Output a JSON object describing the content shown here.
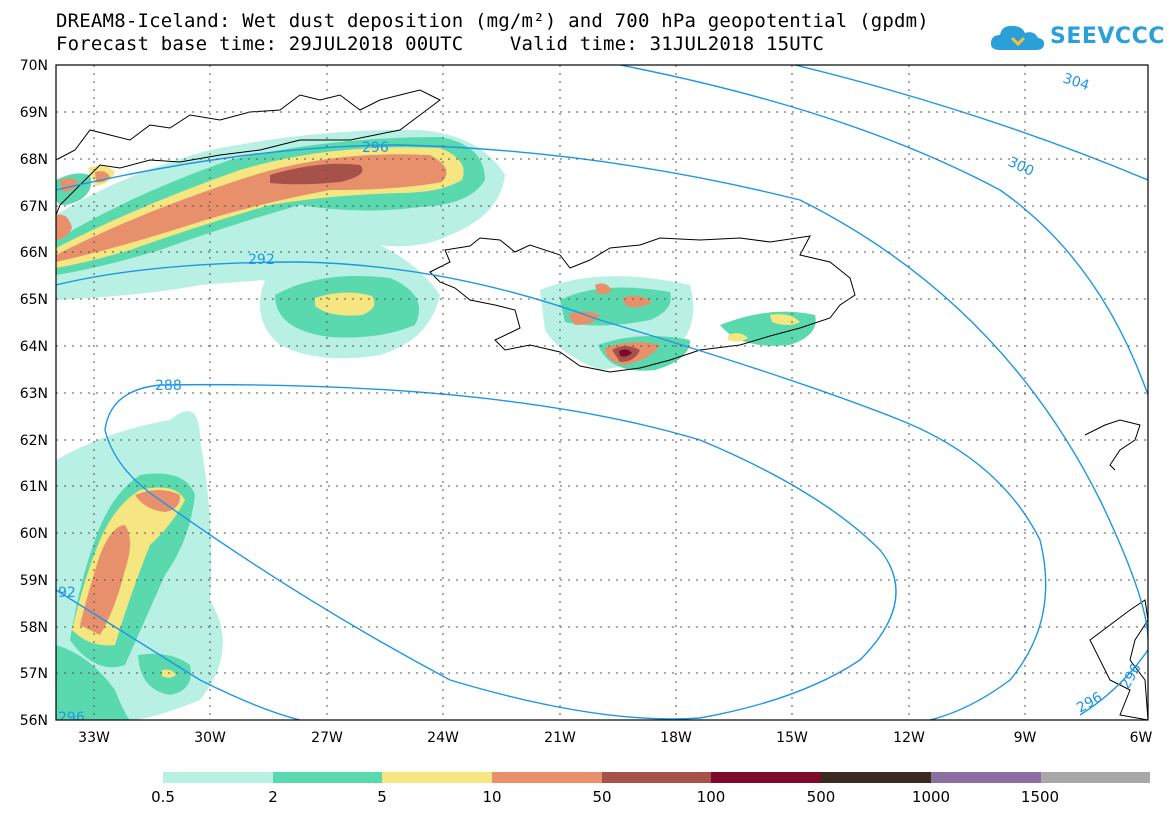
{
  "title": {
    "line1": "DREAM8-Iceland: Wet dust deposition (mg/m²) and 700 hPa geopotential (gpdm)",
    "line2": "Forecast base time: 29JUL2018 00UTC    Valid time: 31JUL2018 15UTC"
  },
  "logo": {
    "text": "SEEVCCC",
    "icon": "cloud-icon",
    "color": "#2a9fd8"
  },
  "map": {
    "lon_range": [
      -34.2,
      -6
    ],
    "lat_range": [
      56,
      70
    ],
    "lat_labels": [
      "70N",
      "69N",
      "68N",
      "67N",
      "66N",
      "65N",
      "64N",
      "63N",
      "62N",
      "61N",
      "60N",
      "59N",
      "58N",
      "57N",
      "56N"
    ],
    "lon_labels": [
      "33W",
      "30W",
      "27W",
      "24W",
      "21W",
      "18W",
      "15W",
      "12W",
      "9W",
      "6W"
    ],
    "contour_labels": [
      "304",
      "300",
      "296",
      "292",
      "288",
      "92",
      "296",
      "296",
      "296"
    ],
    "contour_color": "#1e96e6"
  },
  "legend": {
    "colors": [
      "#b9f0e4",
      "#5ad9ae",
      "#f5e682",
      "#e8906c",
      "#a6524a",
      "#7d0a2a",
      "#3a2a22",
      "#8c6fa0",
      "#a8a8a8"
    ],
    "labels": [
      "0.5",
      "2",
      "5",
      "10",
      "50",
      "100",
      "500",
      "1000",
      "1500"
    ]
  }
}
